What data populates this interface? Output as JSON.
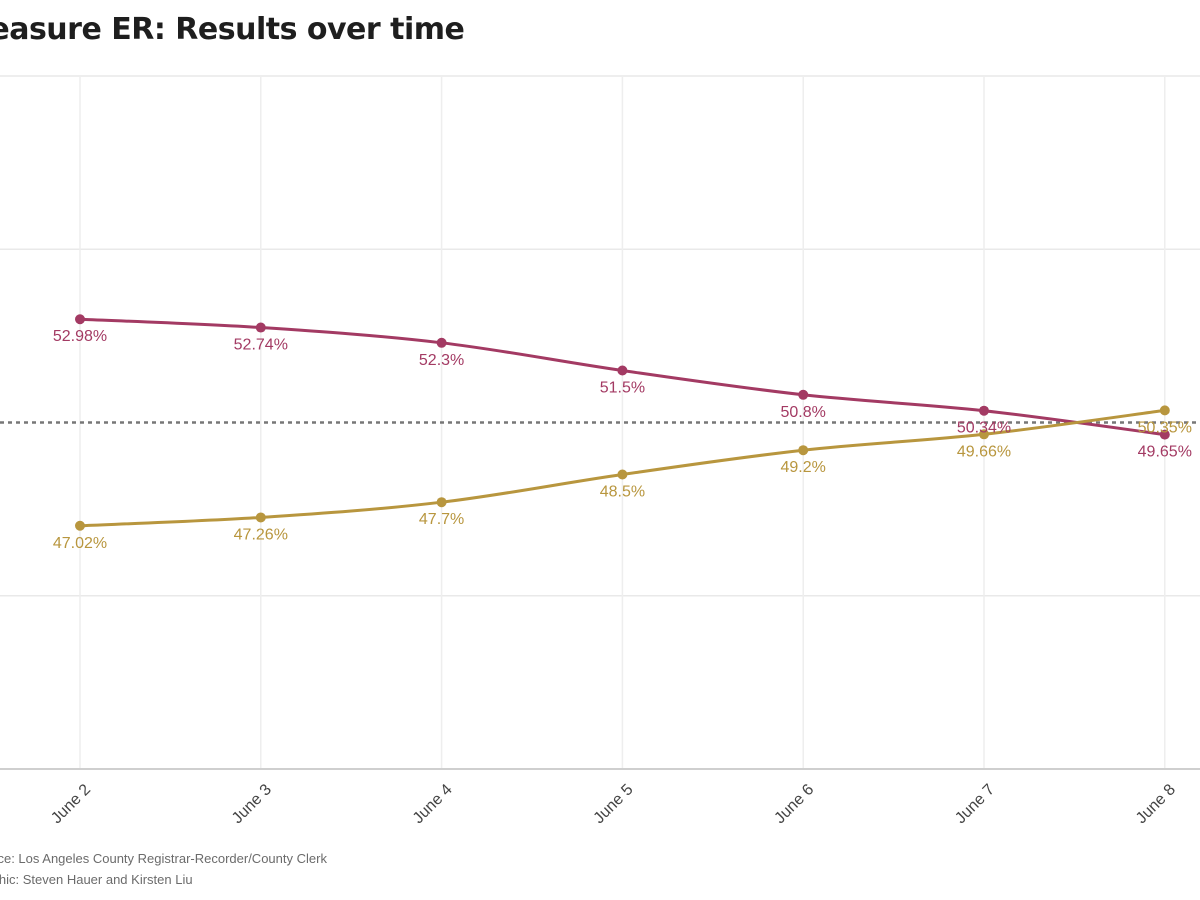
{
  "title": "Measure ER: Results over time",
  "source": "Source: Los Angeles County Registrar-Recorder/County Clerk",
  "credit": "Graphic: Steven Hauer and Kirsten Liu",
  "chart_data": {
    "type": "line",
    "categories": [
      "June 2",
      "June 3",
      "June 4",
      "June 5",
      "June 6",
      "June 7",
      "June 8"
    ],
    "series": [
      {
        "name": "",
        "color": "#a33a63",
        "values": [
          52.98,
          52.74,
          52.3,
          51.5,
          50.8,
          50.34,
          49.65
        ],
        "labels": [
          "52.98%",
          "52.74%",
          "52.3%",
          "51.5%",
          "50.8%",
          "50.34%",
          "49.65%"
        ]
      },
      {
        "name": "",
        "color": "#b8963e",
        "values": [
          47.02,
          47.26,
          47.7,
          48.5,
          49.2,
          49.66,
          50.35
        ],
        "labels": [
          "47.02%",
          "47.26%",
          "47.7%",
          "48.5%",
          "49.2%",
          "49.66%",
          "50.35%"
        ]
      }
    ],
    "reference_line": {
      "value": 50,
      "style": "dotted",
      "color": "#777777"
    },
    "ylim": [
      40,
      60
    ],
    "grid": true,
    "legend": "none"
  }
}
